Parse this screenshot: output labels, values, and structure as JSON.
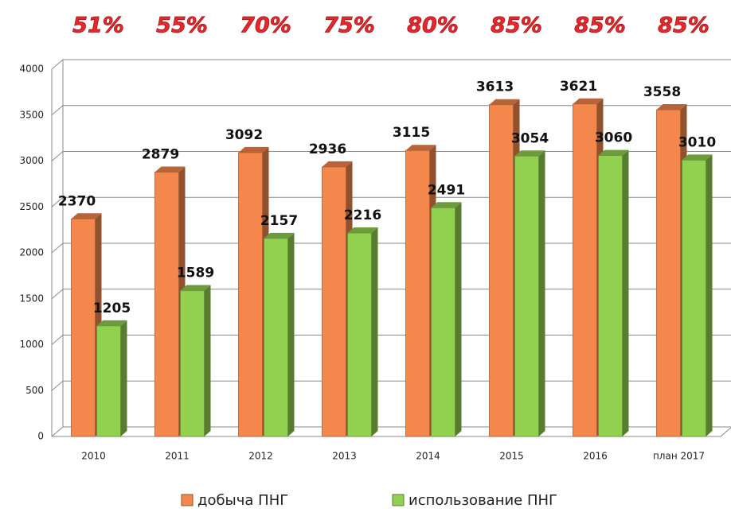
{
  "chart_data": {
    "type": "bar3d",
    "annotations": [
      "51%",
      "55%",
      "70%",
      "75%",
      "80%",
      "85%",
      "85%",
      "85%"
    ],
    "categories": [
      "2010",
      "2011",
      "2012",
      "2013",
      "2014",
      "2015",
      "2016",
      "план 2017"
    ],
    "series": [
      {
        "name": "добыча ПНГ",
        "color": "#f4874b",
        "values": [
          2370,
          2879,
          3092,
          2936,
          3115,
          3613,
          3621,
          3558
        ]
      },
      {
        "name": "использование ПНГ",
        "color": "#92d050",
        "values": [
          1205,
          1589,
          2157,
          2216,
          2491,
          3054,
          3060,
          3010
        ]
      }
    ],
    "ylim": [
      0,
      4000
    ],
    "yticks": [
      0,
      500,
      1000,
      1500,
      2000,
      2500,
      3000,
      3500,
      4000
    ],
    "grid": true
  }
}
